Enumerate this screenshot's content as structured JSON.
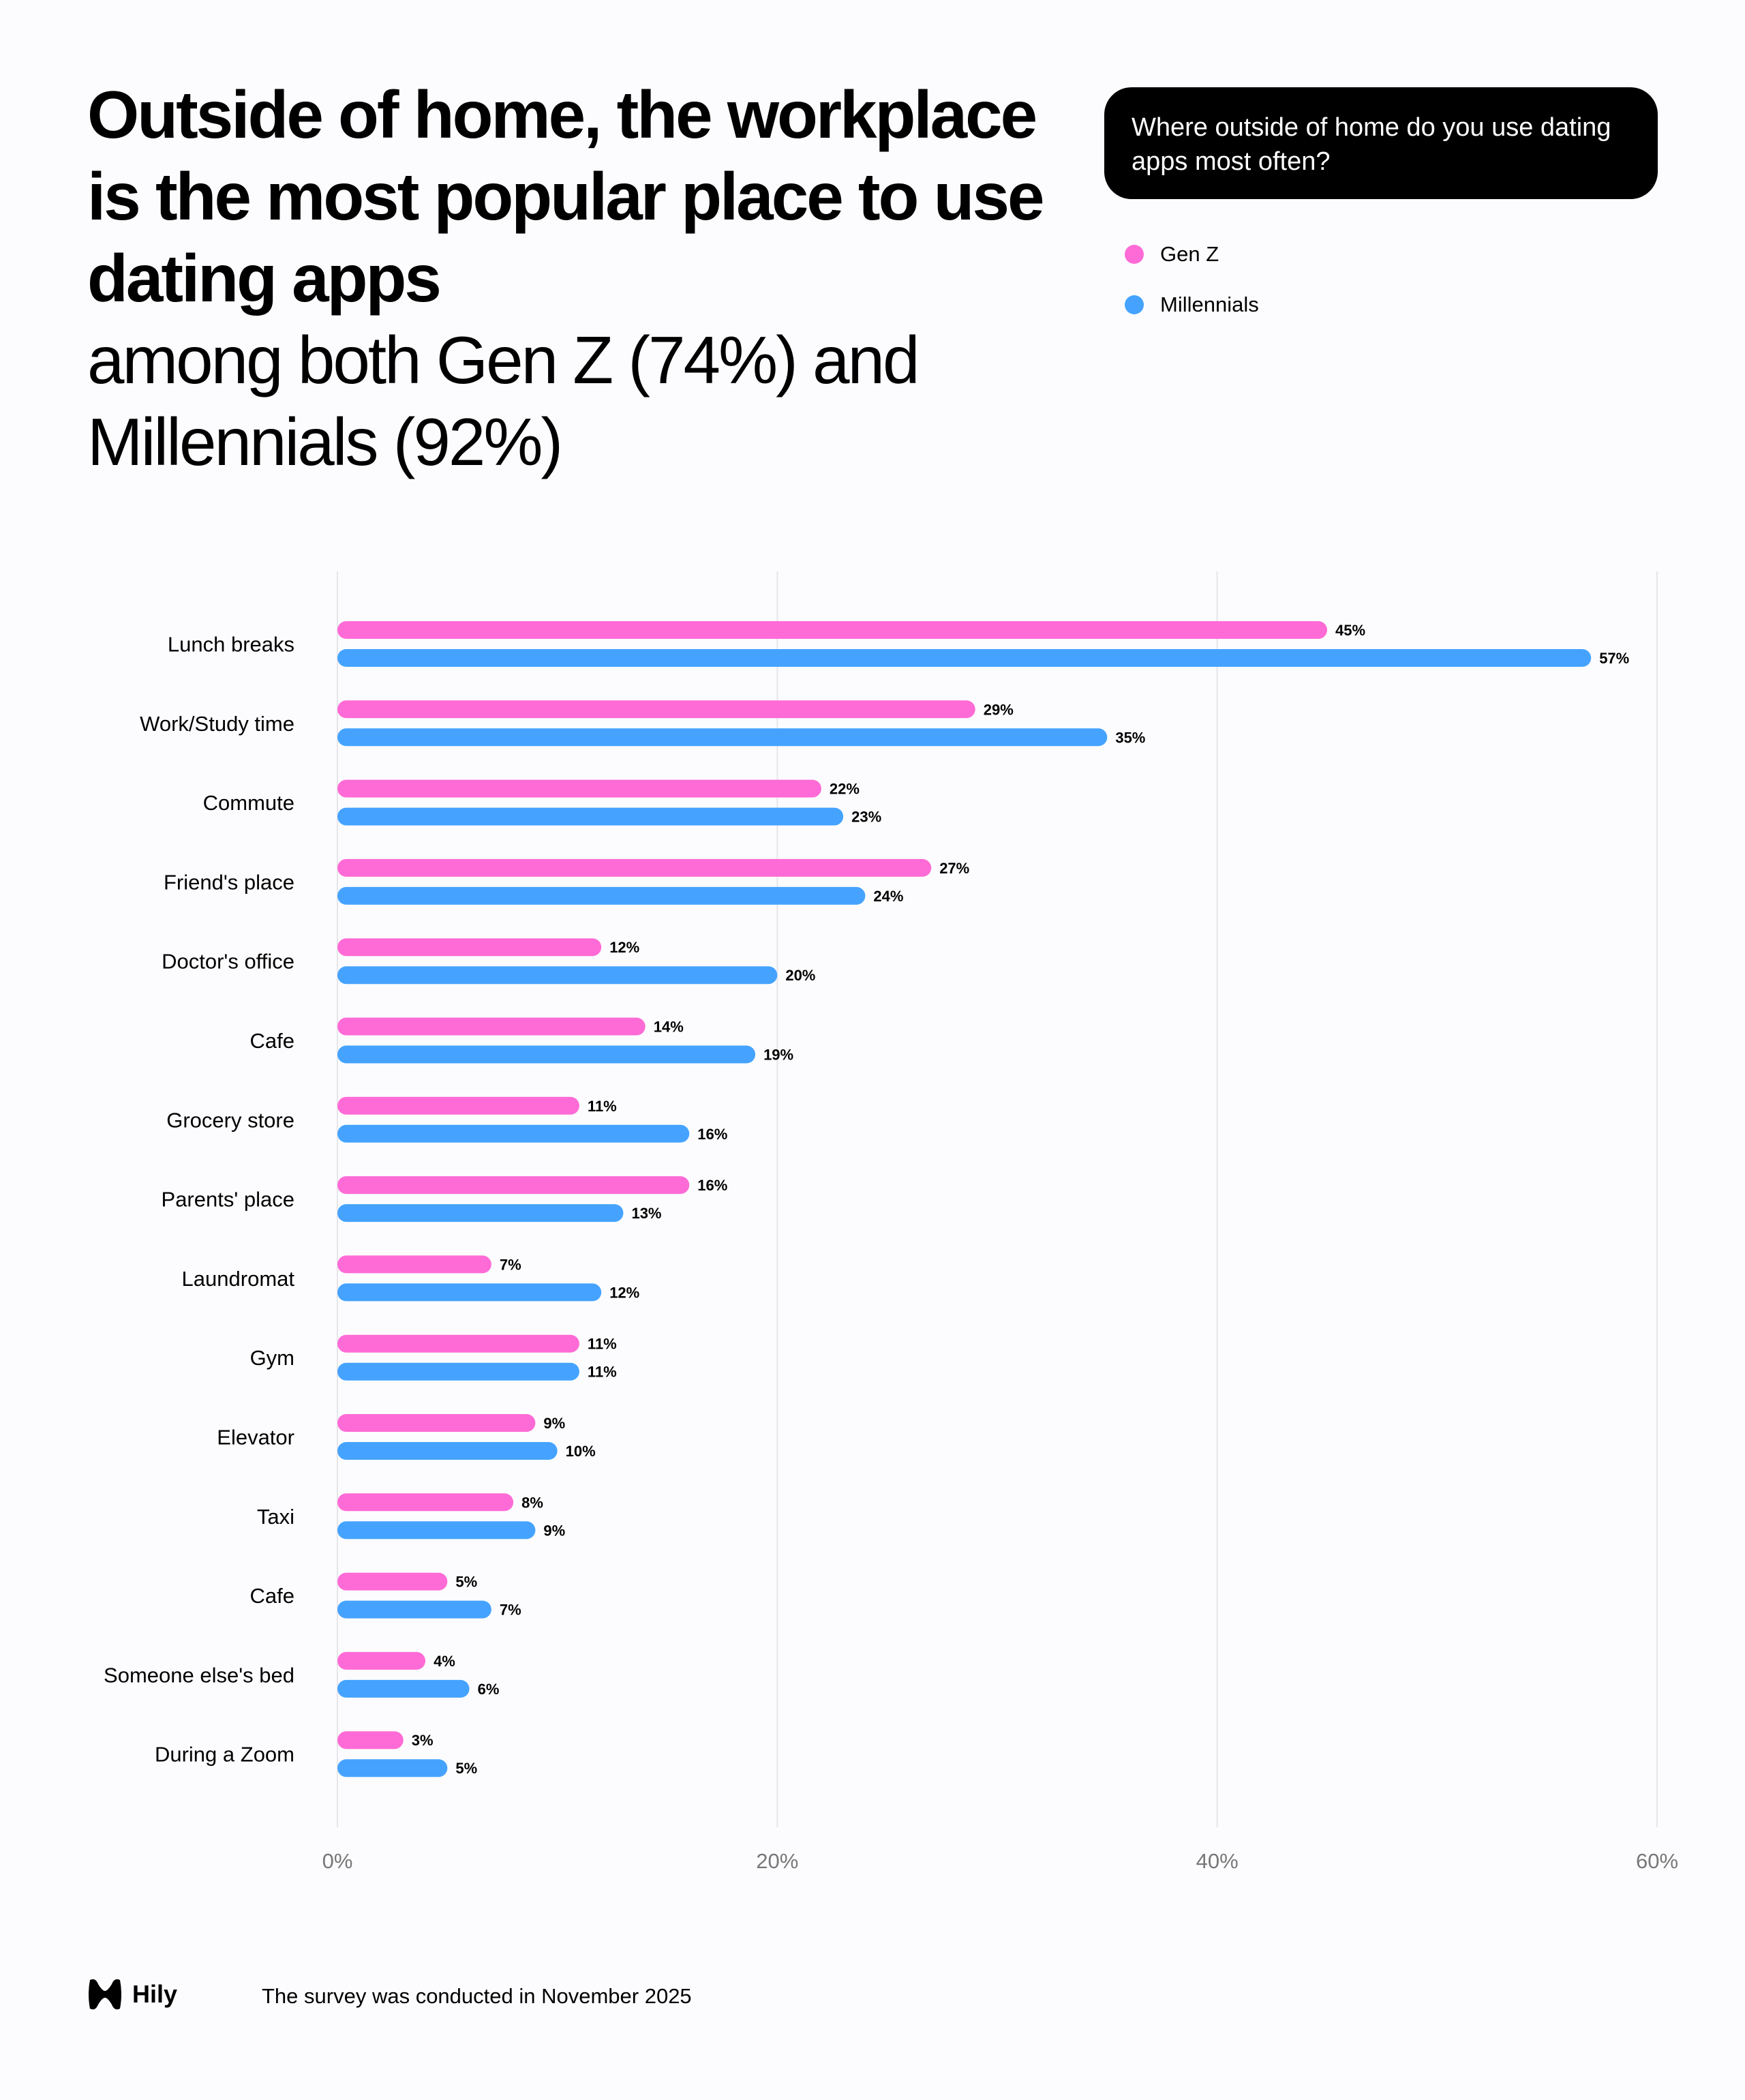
{
  "title": {
    "bold": "Outside of home, the workplace is the most popular place to use dating apps",
    "regular": "among both Gen Z (74%) and Millennials (92%)"
  },
  "question": "Where outside of home do you use dating apps most often?",
  "footer": {
    "logo": "Hily",
    "note": "The survey was conducted in November 2025"
  },
  "colors": {
    "genz": "#ff6bd6",
    "millennials": "#45a3ff"
  },
  "chart_data": {
    "type": "bar",
    "orientation": "horizontal",
    "categories": [
      "Lunch breaks",
      "Work/Study time",
      "Commute",
      "Friend's place",
      "Doctor's office",
      "Cafe",
      "Grocery store",
      "Parents' place",
      "Laundromat",
      "Gym",
      "Elevator",
      "Taxi",
      "Cafe",
      "Someone else's bed",
      "During a Zoom"
    ],
    "series": [
      {
        "name": "Gen Z",
        "color": "#ff6bd6",
        "values": [
          45,
          29,
          22,
          27,
          12,
          14,
          11,
          16,
          7,
          11,
          9,
          8,
          5,
          4,
          3
        ]
      },
      {
        "name": "Millennials",
        "color": "#45a3ff",
        "values": [
          57,
          35,
          23,
          24,
          20,
          19,
          16,
          13,
          12,
          11,
          10,
          9,
          7,
          6,
          5
        ]
      }
    ],
    "xlim": [
      0,
      60
    ],
    "xticks": [
      "0%",
      "20%",
      "40%",
      "60%"
    ],
    "grid": true,
    "legend": "top-right"
  }
}
